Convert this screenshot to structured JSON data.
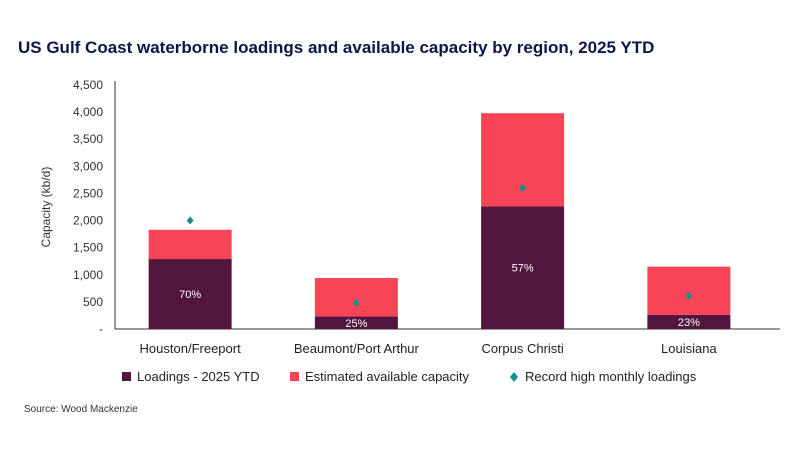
{
  "title": "US Gulf Coast waterborne loadings and available capacity by region, 2025 YTD",
  "source": "Source: Wood Mackenzie",
  "colors": {
    "loadings": "#52153e",
    "available": "#f84457",
    "record": "#1a8f8a"
  },
  "chart_data": {
    "type": "bar",
    "stacked": true,
    "title": "US Gulf Coast waterborne loadings and available capacity by region, 2025 YTD",
    "ylabel": "Capacity (kb/d)",
    "ylim": [
      0,
      4500
    ],
    "yticks": [
      "-",
      "500",
      "1,000",
      "1,500",
      "2,000",
      "2,500",
      "3,000",
      "3,500",
      "4,000",
      "4,500"
    ],
    "grid": false,
    "legend_position": "bottom",
    "categories": [
      "Houston/Freeport",
      "Beaumont/Port Arthur",
      "Corpus Christi",
      "Louisiana"
    ],
    "series": [
      {
        "name": "Loadings - 2025 YTD",
        "kind": "bar",
        "values": [
          1290,
          230,
          2260,
          260
        ],
        "labels": [
          "70%",
          "25%",
          "57%",
          "23%"
        ]
      },
      {
        "name": "Estimated available capacity",
        "kind": "bar",
        "values": [
          540,
          710,
          1720,
          890
        ]
      },
      {
        "name": "Record high monthly loadings",
        "kind": "marker",
        "values": [
          2000,
          480,
          2600,
          610
        ]
      }
    ]
  }
}
